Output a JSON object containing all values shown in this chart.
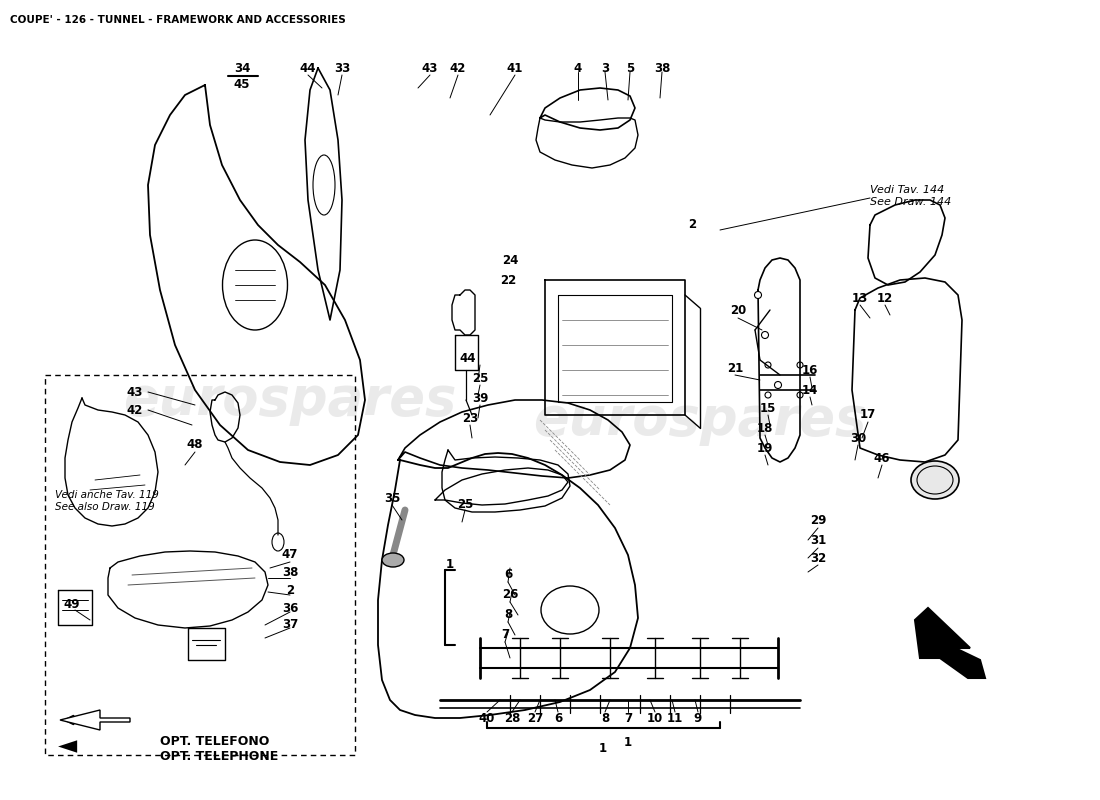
{
  "title": "COUPE' - 126 - TUNNEL - FRAMEWORK AND ACCESSORIES",
  "title_fontsize": 7.5,
  "background_color": "#ffffff",
  "watermark_text1": "eurospares",
  "watermark_text2": "eurospares",
  "watermark_color": "#cccccc",
  "figsize": [
    11.0,
    8.0
  ],
  "dpi": 100,
  "note1_text": "Vedi Tav. 144\nSee Draw. 144",
  "note2_text": "Vedi anche Tav. 119\nSee also Draw. 119",
  "opt_text": "OPT. TELEFONO\nOPT. TELEPHONE"
}
